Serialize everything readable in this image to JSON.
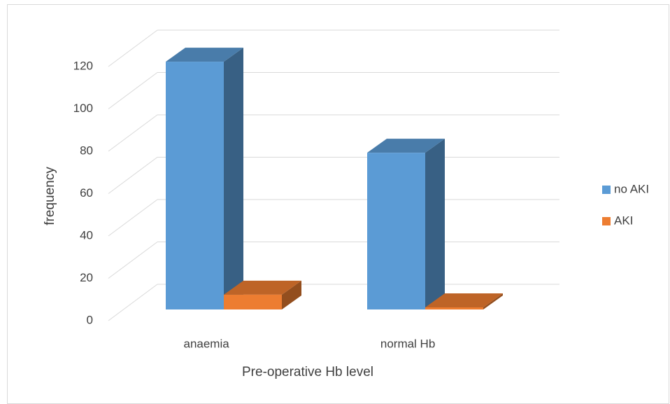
{
  "chart_data": {
    "type": "bar3d",
    "x_label": "Pre-operative Hb level",
    "y_label": "frequency",
    "categories": [
      "anaemia",
      "normal Hb"
    ],
    "series": [
      {
        "name": "no AKI",
        "color": "#5b9bd5",
        "values": [
          117,
          74
        ]
      },
      {
        "name": "AKI",
        "color": "#ed7d31",
        "values": [
          7,
          1
        ]
      }
    ],
    "ylim": [
      0,
      120
    ],
    "yticks": [
      0,
      20,
      40,
      60,
      80,
      100,
      120
    ],
    "grid": true,
    "legend": "right"
  }
}
